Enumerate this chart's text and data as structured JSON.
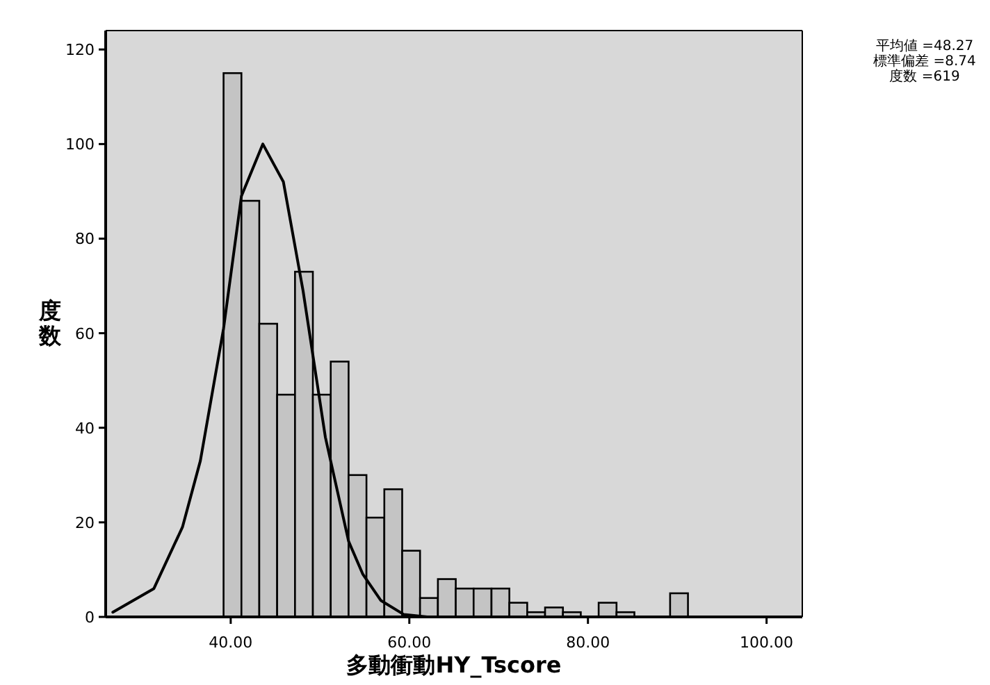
{
  "chart_data": {
    "type": "histogram",
    "xlabel": "多動衝動HY_Tscore",
    "ylabel": "度数",
    "bins": [
      39.2,
      41.2,
      43.2,
      45.2,
      47.2,
      49.2,
      51.2,
      53.2,
      55.2,
      57.2,
      59.2,
      61.2,
      63.2,
      65.2,
      67.2,
      69.2,
      71.2,
      73.2,
      75.2,
      77.2,
      79.2,
      81.2,
      83.2,
      85.2,
      87.2,
      89.2,
      91.2
    ],
    "values": [
      115,
      88,
      62,
      47,
      73,
      47,
      54,
      30,
      21,
      27,
      14,
      4,
      8,
      6,
      6,
      6,
      3,
      1,
      2,
      1,
      0,
      3,
      1,
      0,
      0,
      5
    ],
    "color": "#c4c4c4",
    "series": [
      {
        "type": "line",
        "color": "#000000",
        "x": [
          26.8,
          31.4,
          34.6,
          36.6,
          39.2,
          41.2,
          43.6,
          45.9,
          48.1,
          50.6,
          53.2,
          54.8,
          56.8,
          59.4,
          62
        ],
        "values": [
          1,
          6,
          19,
          33,
          61,
          89,
          100,
          92,
          69,
          38,
          16,
          9,
          3.5,
          0.5,
          0
        ]
      }
    ],
    "xlim": [
      26,
      104
    ],
    "ylim": [
      0,
      124
    ],
    "xticks": [
      {
        "value": 40,
        "label": "40.00"
      },
      {
        "value": 60,
        "label": "60.00"
      },
      {
        "value": 80,
        "label": "80.00"
      },
      {
        "value": 100,
        "label": "100.00"
      }
    ],
    "yticks": [
      0,
      20,
      40,
      60,
      80,
      100,
      120
    ],
    "annotations": [
      "平均値 =48.27",
      "標準偏差 =8.74",
      "度数 =619"
    ]
  }
}
